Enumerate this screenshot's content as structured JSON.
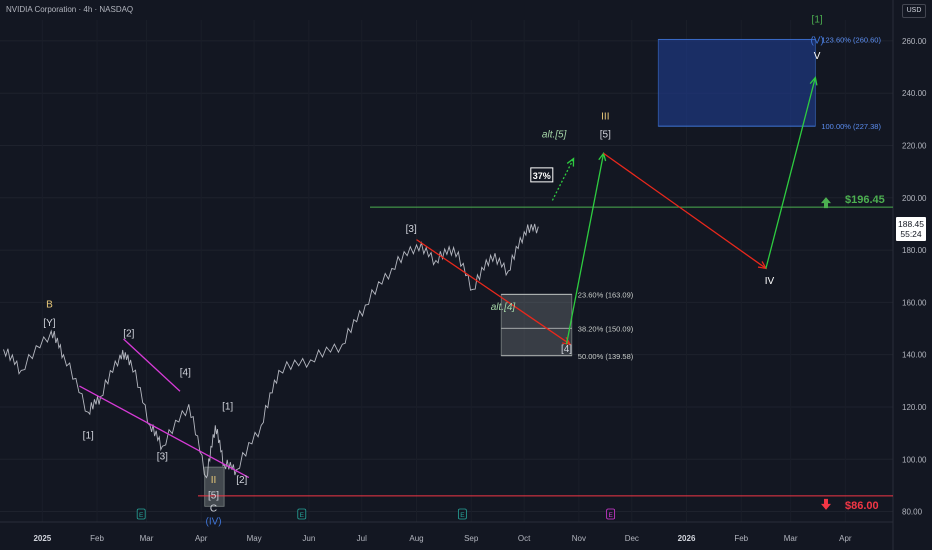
{
  "header": {
    "title": "NVIDIA Corporation · 4h · NASDAQ",
    "currency": "USD"
  },
  "colors": {
    "background": "#131722",
    "price_line": "#d1d4dc",
    "bullish": "#4caf50",
    "bearish": "#f23645",
    "projection_down": "#e8281c",
    "projection_up": "#2ecc40",
    "triangle": "#d63ad6",
    "target_box": "#1e3a8a",
    "fib_box": "#9aa3a0",
    "label_yellow": "#e8c97a",
    "label_blue": "#3f74d6",
    "label_white": "#ffffff",
    "label_green": "#4caf50"
  },
  "chart_data": {
    "type": "line",
    "title": "NVIDIA Corporation · 4h · NASDAQ",
    "ylim": [
      76,
      268
    ],
    "y_ticks": [
      80,
      100,
      120,
      140,
      160,
      180,
      200,
      220,
      240,
      260
    ],
    "x_ticks": [
      "2025",
      "Feb",
      "Mar",
      "Apr",
      "May",
      "Jun",
      "Jul",
      "Aug",
      "Sep",
      "Oct",
      "Nov",
      "Dec",
      "2026",
      "Feb",
      "Mar",
      "Apr"
    ],
    "x_tick_dates": [
      "2025-01-01",
      "2025-02-01",
      "2025-03-01",
      "2025-04-01",
      "2025-05-01",
      "2025-06-01",
      "2025-07-01",
      "2025-08-01",
      "2025-09-01",
      "2025-10-01",
      "2025-11-01",
      "2025-12-01",
      "2026-01-01",
      "2026-02-01",
      "2026-03-01",
      "2026-04-01"
    ],
    "price_series": {
      "x": [
        "2024-12-10",
        "2024-12-20",
        "2025-01-06",
        "2025-01-13",
        "2025-01-27",
        "2025-02-03",
        "2025-02-14",
        "2025-02-20",
        "2025-03-03",
        "2025-03-10",
        "2025-03-25",
        "2025-04-04",
        "2025-04-09",
        "2025-04-14",
        "2025-04-21",
        "2025-05-05",
        "2025-05-15",
        "2025-06-02",
        "2025-06-20",
        "2025-07-03",
        "2025-07-18",
        "2025-08-01",
        "2025-08-12",
        "2025-08-22",
        "2025-09-02",
        "2025-09-12",
        "2025-09-22",
        "2025-10-01",
        "2025-10-09"
      ],
      "y": [
        142,
        134,
        149,
        140,
        118,
        124,
        140,
        138,
        113,
        105,
        121,
        93,
        113,
        98,
        96,
        113,
        134,
        138,
        144,
        159,
        173,
        182,
        176,
        181,
        165,
        178,
        172,
        187,
        189
      ]
    },
    "current_price": "188.45",
    "countdown": "55:24",
    "levels": [
      {
        "label": "$196.45",
        "value": 196.45,
        "color": "#4caf50",
        "direction": "up"
      },
      {
        "label": "$86.00",
        "value": 86.0,
        "color": "#f23645",
        "direction": "down"
      }
    ],
    "fib_zones": [
      {
        "name": "target",
        "from": 227.38,
        "to": 260.6,
        "x_start": "2025-12-16",
        "x_end": "2026-03-15",
        "labels": [
          {
            "text": "123.60% (260.60)",
            "value": 260.6
          },
          {
            "text": "100.00% (227.38)",
            "value": 227.38
          }
        ]
      },
      {
        "name": "wave4",
        "from": 139.58,
        "to": 163.09,
        "x_start": "2025-09-18",
        "x_end": "2025-10-28",
        "labels": [
          {
            "text": "23.60% (163.09)",
            "value": 163.09
          },
          {
            "text": "38.20% (150.09)",
            "value": 150.09
          },
          {
            "text": "50.00% (139.58)",
            "value": 139.58
          }
        ]
      },
      {
        "name": "wave2",
        "from": 82,
        "to": 97,
        "x_start": "2025-04-03",
        "x_end": "2025-04-14",
        "labels": []
      }
    ],
    "projections": [
      {
        "x": [
          "2025-08-01",
          "2025-10-27"
        ],
        "y": [
          184,
          144
        ],
        "color": "#e8281c"
      },
      {
        "x": [
          "2025-10-25",
          "2025-11-15"
        ],
        "y": [
          144,
          217
        ],
        "color": "#2ecc40"
      },
      {
        "x": [
          "2025-11-15",
          "2026-02-15"
        ],
        "y": [
          217,
          173
        ],
        "color": "#e8281c"
      },
      {
        "x": [
          "2026-02-15",
          "2026-03-15"
        ],
        "y": [
          173,
          246
        ],
        "color": "#2ecc40"
      }
    ],
    "alt_projection": {
      "x": [
        "2025-10-17",
        "2025-10-29"
      ],
      "y": [
        199,
        215
      ],
      "color": "#2ecc40"
    },
    "triangle": [
      {
        "x": [
          "2025-01-22",
          "2025-04-28"
        ],
        "y": [
          128,
          93
        ]
      },
      {
        "x": [
          "2025-02-16",
          "2025-03-20"
        ],
        "y": [
          146,
          126
        ]
      }
    ],
    "percent_badge": {
      "text": "37%",
      "x": "2025-10-11",
      "y": 208
    },
    "wave_labels": [
      {
        "text": "B",
        "x": "2025-01-05",
        "y": 158,
        "color": "#e8c97a"
      },
      {
        "text": "[Y]",
        "x": "2025-01-05",
        "y": 151,
        "color": "#d1d4dc"
      },
      {
        "text": "[1]",
        "x": "2025-01-27",
        "y": 108,
        "color": "#d1d4dc"
      },
      {
        "text": "[2]",
        "x": "2025-02-19",
        "y": 147,
        "color": "#d1d4dc"
      },
      {
        "text": "[3]",
        "x": "2025-03-10",
        "y": 100,
        "color": "#d1d4dc"
      },
      {
        "text": "[4]",
        "x": "2025-03-23",
        "y": 132,
        "color": "#d1d4dc"
      },
      {
        "text": "[1]",
        "x": "2025-04-16",
        "y": 119,
        "color": "#d1d4dc"
      },
      {
        "text": "[2]",
        "x": "2025-04-24",
        "y": 91,
        "color": "#d1d4dc"
      },
      {
        "text": "II",
        "x": "2025-04-08",
        "y": 91,
        "color": "#e8c97a"
      },
      {
        "text": "[5]",
        "x": "2025-04-08",
        "y": 85,
        "color": "#d1d4dc"
      },
      {
        "text": "C",
        "x": "2025-04-08",
        "y": 80,
        "color": "#d1d4dc"
      },
      {
        "text": "(IV)",
        "x": "2025-04-08",
        "y": 75,
        "color": "#3f74d6"
      },
      {
        "text": "[3]",
        "x": "2025-07-29",
        "y": 187,
        "color": "#d1d4dc"
      },
      {
        "text": "alt.[4]",
        "x": "2025-09-19",
        "y": 157,
        "color": "#a5d6a7"
      },
      {
        "text": "[4]",
        "x": "2025-10-25",
        "y": 141,
        "color": "#d1d4dc"
      },
      {
        "text": "alt.[5]",
        "x": "2025-10-18",
        "y": 223,
        "color": "#a5d6a7"
      },
      {
        "text": "III",
        "x": "2025-11-16",
        "y": 230,
        "color": "#e8c97a"
      },
      {
        "text": "[5]",
        "x": "2025-11-16",
        "y": 223,
        "color": "#d1d4dc"
      },
      {
        "text": "IV",
        "x": "2026-02-17",
        "y": 167,
        "color": "#ffffff"
      },
      {
        "text": "[1]",
        "x": "2026-03-16",
        "y": 267,
        "color": "#4caf50"
      },
      {
        "text": "(V)",
        "x": "2026-03-16",
        "y": 259,
        "color": "#3f74d6"
      },
      {
        "text": "V",
        "x": "2026-03-16",
        "y": 253,
        "color": "#ffffff"
      }
    ],
    "event_markers": [
      {
        "text": "E",
        "x": "2025-02-26",
        "color": "#26a69a"
      },
      {
        "text": "E",
        "x": "2025-05-28",
        "color": "#26a69a"
      },
      {
        "text": "E",
        "x": "2025-08-27",
        "color": "#26a69a"
      },
      {
        "text": "E",
        "x": "2025-11-19",
        "color": "#d63ad6"
      }
    ],
    "grid": true
  }
}
